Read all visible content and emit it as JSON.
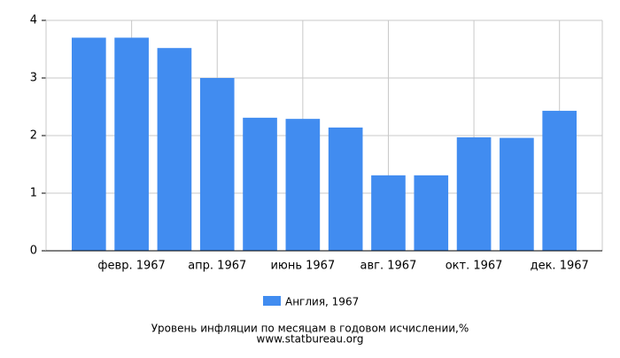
{
  "chart_data": {
    "type": "bar",
    "title": "Уровень инфляции по месяцам в годовом исчислении,%",
    "source": "www.statbureau.org",
    "categories": [
      null,
      "февр. 1967",
      null,
      "апр. 1967",
      null,
      "июнь 1967",
      null,
      "авг. 1967",
      null,
      "окт. 1967",
      null,
      "дек. 1967"
    ],
    "series": [
      {
        "name": "Англия, 1967",
        "color": "#418cf0",
        "values": [
          3.7,
          3.7,
          3.52,
          3.0,
          2.31,
          2.29,
          2.14,
          1.31,
          1.31,
          1.97,
          1.96,
          2.43
        ]
      }
    ],
    "ylim": [
      0,
      4
    ],
    "yticks": [
      0,
      1,
      2,
      3,
      4
    ],
    "grid": true
  }
}
